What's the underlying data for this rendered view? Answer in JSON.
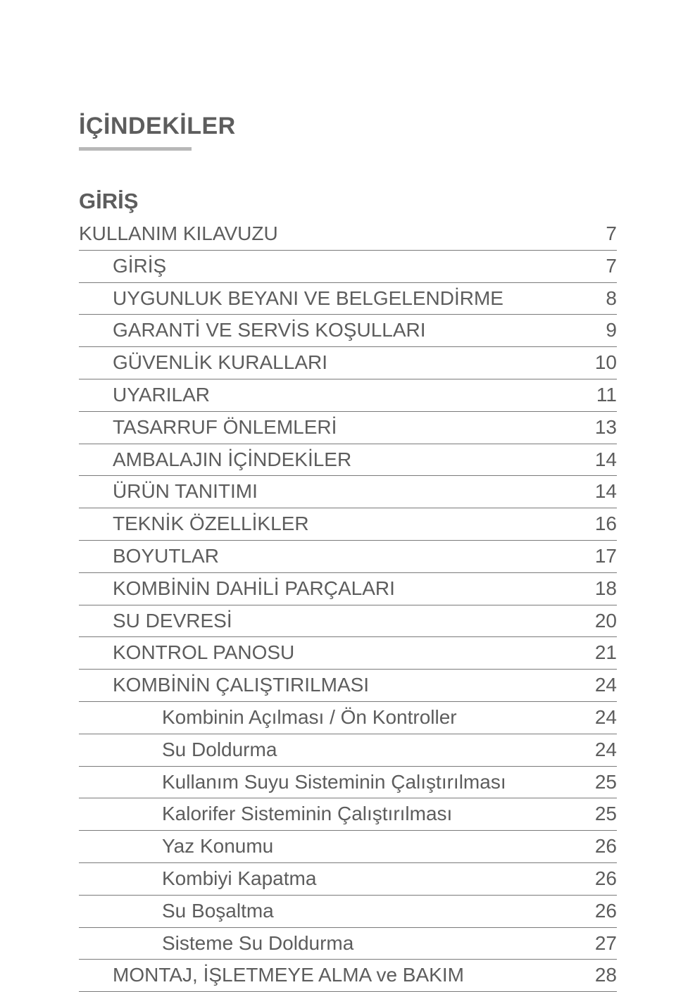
{
  "title": "İÇİNDEKİLER",
  "section_heading": "GİRİŞ",
  "colors": {
    "text": "#5d5d5d",
    "rule": "#b8b8b8",
    "row_border": "#7a7a7a",
    "background": "#ffffff"
  },
  "typography": {
    "title_fontsize": 34,
    "heading_fontsize": 31,
    "row_fontsize": 28,
    "font_family": "Arial"
  },
  "toc": [
    {
      "label": "KULLANIM KILAVUZU",
      "page": "7",
      "indent": 0
    },
    {
      "label": "GİRİŞ",
      "page": "7",
      "indent": 1
    },
    {
      "label": "UYGUNLUK BEYANI VE BELGELENDİRME",
      "page": "8",
      "indent": 1
    },
    {
      "label": "GARANTİ VE SERVİS KOŞULLARI",
      "page": "9",
      "indent": 1
    },
    {
      "label": "GÜVENLİK KURALLARI",
      "page": "10",
      "indent": 1
    },
    {
      "label": "UYARILAR",
      "page": "11",
      "indent": 1
    },
    {
      "label": "TASARRUF ÖNLEMLERİ",
      "page": "13",
      "indent": 1
    },
    {
      "label": "AMBALAJIN İÇİNDEKİLER",
      "page": "14",
      "indent": 1
    },
    {
      "label": "ÜRÜN TANITIMI",
      "page": "14",
      "indent": 1
    },
    {
      "label": "TEKNİK ÖZELLİKLER",
      "page": "16",
      "indent": 1
    },
    {
      "label": "BOYUTLAR",
      "page": "17",
      "indent": 1
    },
    {
      "label": "KOMBİNİN DAHİLİ PARÇALARI",
      "page": "18",
      "indent": 1
    },
    {
      "label": "SU DEVRESİ",
      "page": "20",
      "indent": 1
    },
    {
      "label": "KONTROL PANOSU",
      "page": "21",
      "indent": 1
    },
    {
      "label": "KOMBİNİN ÇALIŞTIRILMASI",
      "page": "24",
      "indent": 1
    },
    {
      "label": "Kombinin Açılması / Ön Kontroller",
      "page": "24",
      "indent": 2
    },
    {
      "label": "Su Doldurma",
      "page": "24",
      "indent": 2
    },
    {
      "label": "Kullanım Suyu Sisteminin Çalıştırılması",
      "page": "25",
      "indent": 2
    },
    {
      "label": "Kalorifer Sisteminin Çalıştırılması",
      "page": "25",
      "indent": 2
    },
    {
      "label": "Yaz Konumu",
      "page": "26",
      "indent": 2
    },
    {
      "label": "Kombiyi Kapatma",
      "page": "26",
      "indent": 2
    },
    {
      "label": "Su Boşaltma",
      "page": "26",
      "indent": 2
    },
    {
      "label": "Sisteme Su Doldurma",
      "page": "27",
      "indent": 2
    },
    {
      "label": "MONTAJ, İŞLETMEYE ALMA ve BAKIM",
      "page": "28",
      "indent": 1
    }
  ]
}
